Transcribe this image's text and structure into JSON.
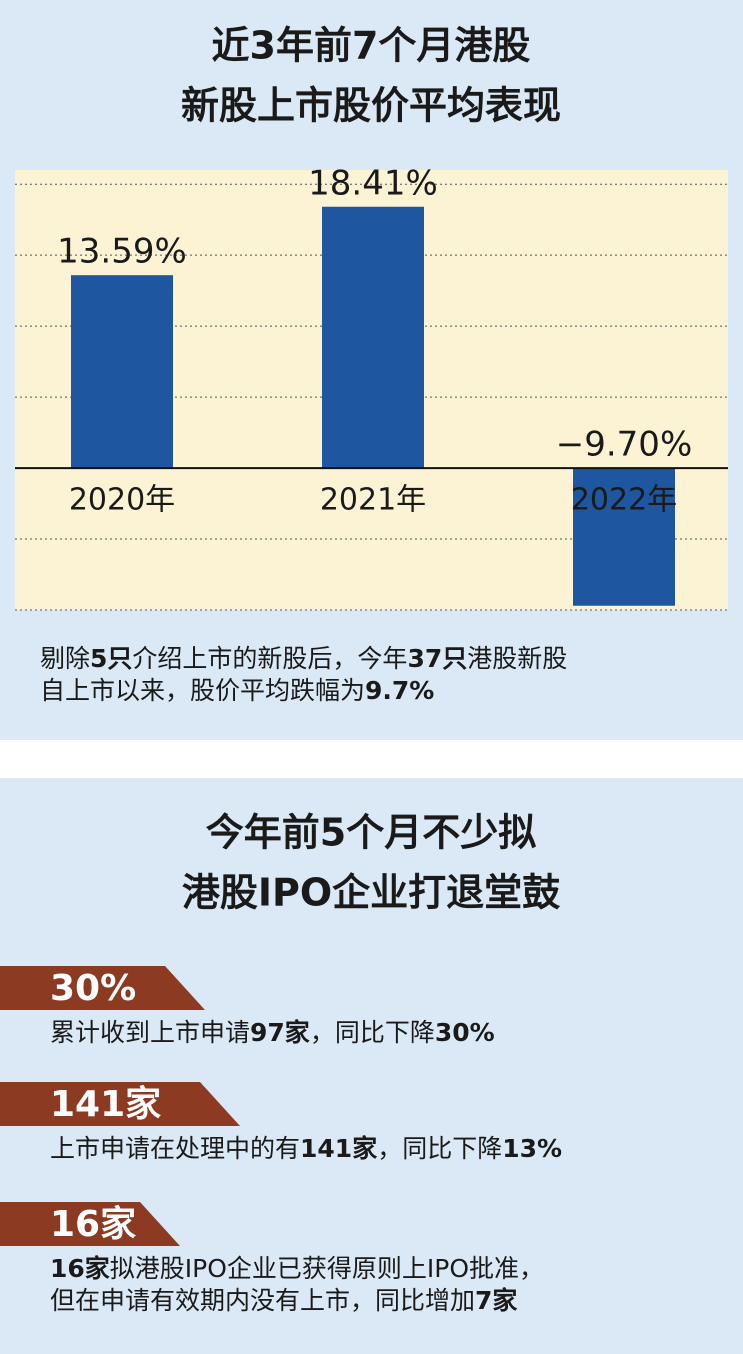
{
  "chart_data": {
    "type": "bar",
    "title": [
      "近3年前7个月港股",
      "新股上市股价平均表现"
    ],
    "categories": [
      "2020年",
      "2021年",
      "2022年"
    ],
    "values": [
      13.59,
      18.41,
      -9.7
    ],
    "value_labels": [
      "13.59%",
      "18.41%",
      "−9.70%"
    ],
    "color": "#1f56a0",
    "ylim": [
      -10,
      21
    ],
    "yticks": [
      -10,
      -5,
      0,
      5,
      10,
      15,
      20
    ],
    "grid": true,
    "note": [
      [
        {
          "text": "剔除",
          "bold": false
        },
        {
          "text": "5只",
          "bold": true
        },
        {
          "text": "介绍上市的新股后，今年",
          "bold": false
        },
        {
          "text": "37只",
          "bold": true
        },
        {
          "text": "港股新股",
          "bold": false
        }
      ],
      [
        {
          "text": "自上市以来，股价平均跌幅为",
          "bold": false
        },
        {
          "text": "9.7%",
          "bold": true
        }
      ]
    ]
  },
  "section": {
    "title": [
      "今年前5个月不少拟",
      "港股IPO企业打退堂鼓"
    ],
    "items": [
      {
        "tag": "30%",
        "lines": [
          [
            {
              "text": "累计收到上市申请",
              "bold": false
            },
            {
              "text": "97家",
              "bold": true
            },
            {
              "text": "，同比下降",
              "bold": false
            },
            {
              "text": "30%",
              "bold": true
            }
          ]
        ]
      },
      {
        "tag": "141家",
        "lines": [
          [
            {
              "text": "上市申请在处理中的有",
              "bold": false
            },
            {
              "text": "141家",
              "bold": true
            },
            {
              "text": "，同比下降",
              "bold": false
            },
            {
              "text": "13%",
              "bold": true
            }
          ]
        ]
      },
      {
        "tag": "16家",
        "lines": [
          [
            {
              "text": "16家",
              "bold": true
            },
            {
              "text": "拟港股IPO企业已获得原则上IPO批准，",
              "bold": false
            }
          ],
          [
            {
              "text": "但在申请有效期内没有上市，同比增加",
              "bold": false
            },
            {
              "text": "7家",
              "bold": true
            }
          ]
        ]
      }
    ]
  }
}
